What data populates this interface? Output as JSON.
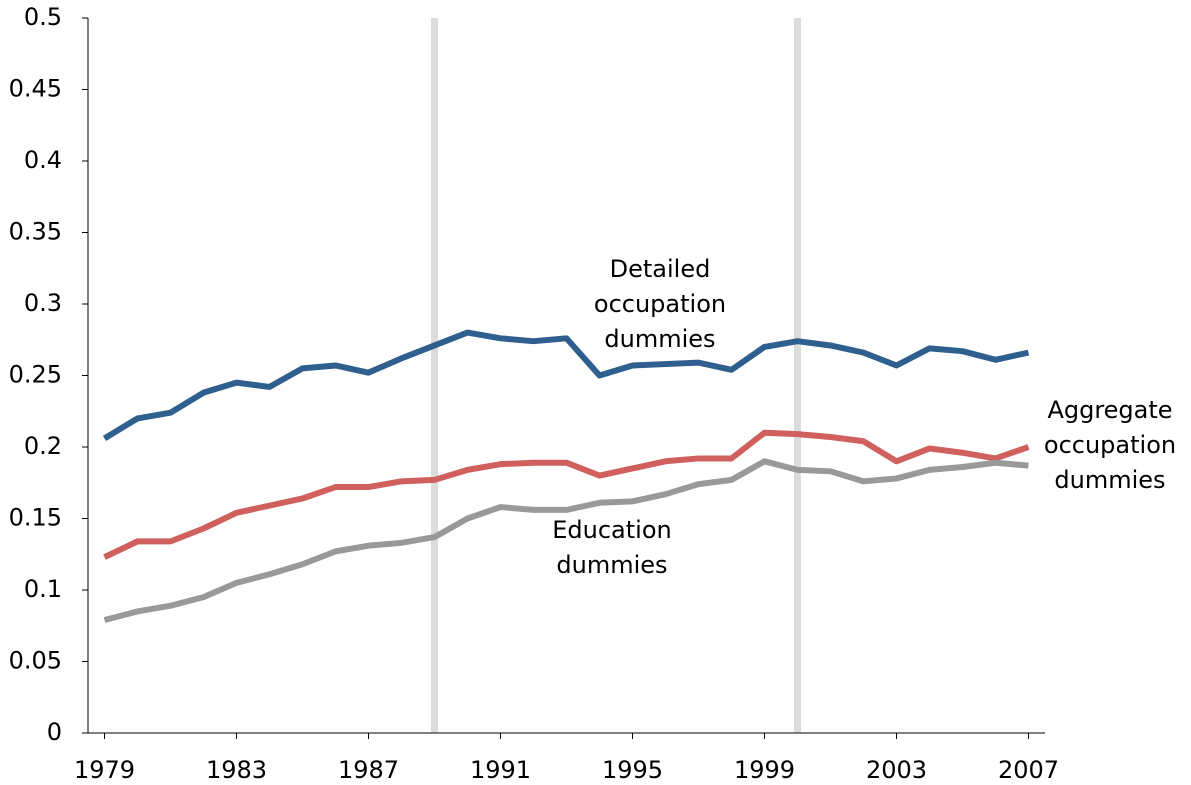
{
  "chart_data": {
    "type": "line",
    "x": [
      1979,
      1980,
      1981,
      1982,
      1983,
      1984,
      1985,
      1986,
      1987,
      1988,
      1989,
      1990,
      1991,
      1992,
      1993,
      1994,
      1995,
      1996,
      1997,
      1998,
      1999,
      2000,
      2001,
      2002,
      2003,
      2004,
      2005,
      2006,
      2007
    ],
    "series": [
      {
        "name": "Detailed occupation dummies",
        "color": "#2e5f8f",
        "values": [
          0.206,
          0.22,
          0.224,
          0.238,
          0.245,
          0.242,
          0.255,
          0.257,
          0.252,
          0.262,
          0.271,
          0.28,
          0.276,
          0.274,
          0.276,
          0.25,
          0.257,
          0.258,
          0.259,
          0.254,
          0.27,
          0.274,
          0.271,
          0.266,
          0.257,
          0.269,
          0.267,
          0.261,
          0.266
        ]
      },
      {
        "name": "Aggregate occupation dummies",
        "color": "#d0605e",
        "values": [
          0.123,
          0.134,
          0.134,
          0.143,
          0.154,
          0.159,
          0.164,
          0.172,
          0.172,
          0.176,
          0.177,
          0.184,
          0.188,
          0.189,
          0.189,
          0.18,
          0.185,
          0.19,
          0.192,
          0.192,
          0.21,
          0.209,
          0.207,
          0.204,
          0.19,
          0.199,
          0.196,
          0.192,
          0.2
        ]
      },
      {
        "name": "Education dummies",
        "color": "#999999",
        "values": [
          0.079,
          0.085,
          0.089,
          0.095,
          0.105,
          0.111,
          0.118,
          0.127,
          0.131,
          0.133,
          0.137,
          0.15,
          0.158,
          0.156,
          0.156,
          0.161,
          0.162,
          0.167,
          0.174,
          0.177,
          0.19,
          0.184,
          0.183,
          0.176,
          0.178,
          0.184,
          0.186,
          0.189,
          0.187
        ]
      }
    ],
    "xlim": [
      1978.5,
      2007.5
    ],
    "xticks": [
      1979,
      1983,
      1987,
      1991,
      1995,
      1999,
      2003,
      2007
    ],
    "ylim": [
      0,
      0.5
    ],
    "yticks": [
      0,
      0.05,
      0.1,
      0.15,
      0.2,
      0.25,
      0.3,
      0.35,
      0.4,
      0.45,
      0.5
    ],
    "vlines": [
      1989,
      2000
    ],
    "vline_color": "#dcdcdc"
  }
}
